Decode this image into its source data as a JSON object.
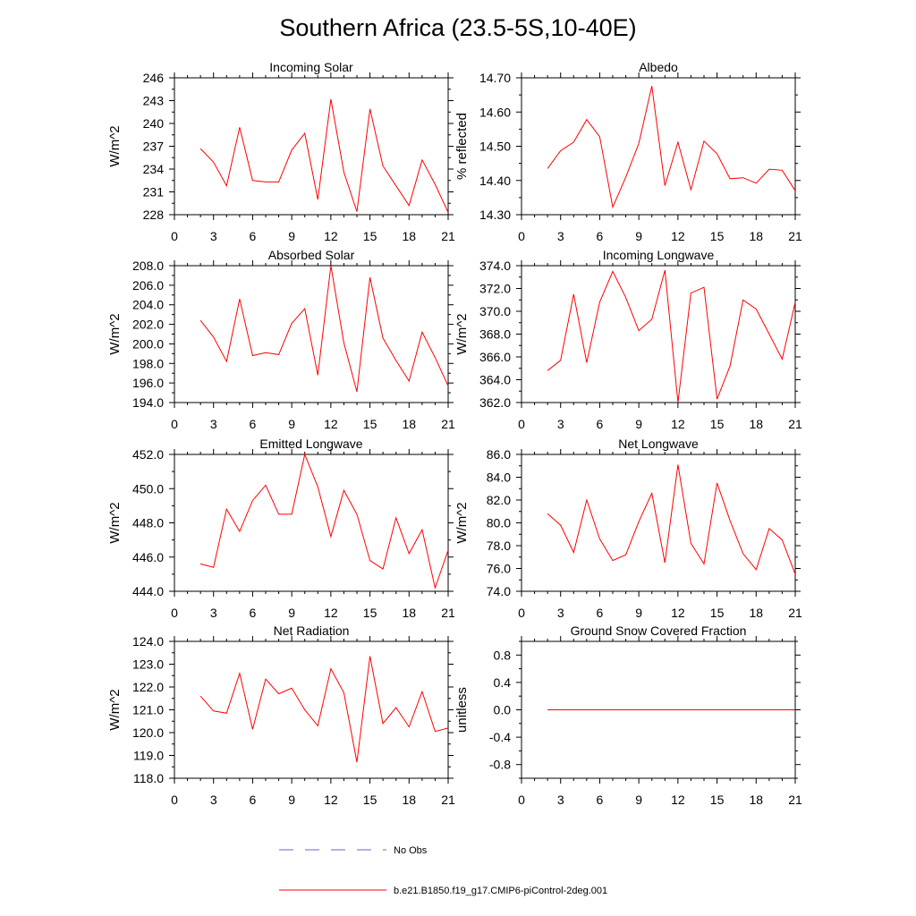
{
  "title": "Southern Africa (23.5-5S,10-40E)",
  "colors": {
    "series": "#ff0000",
    "obs": "#6666cc",
    "axis": "#000000"
  },
  "legend": {
    "obs_label": "No Obs",
    "model_label": "b.e21.B1850.f19_g17.CMIP6-piControl-2deg.001"
  },
  "chart_data": [
    {
      "type": "line",
      "title": "Incoming Solar",
      "ylabel": "W/m^2",
      "xlim": [
        0,
        21
      ],
      "xticks": [
        "0",
        "3",
        "6",
        "9",
        "12",
        "15",
        "18",
        "21"
      ],
      "ylim": [
        228,
        246
      ],
      "yticks": [
        "228",
        "231",
        "234",
        "237",
        "240",
        "243",
        "246"
      ],
      "x": [
        2,
        3,
        4,
        5,
        6,
        7,
        8,
        9,
        10,
        11,
        12,
        13,
        14,
        15,
        16,
        17,
        18,
        19,
        20,
        21
      ],
      "values": [
        236.7,
        234.9,
        231.8,
        239.5,
        232.5,
        232.3,
        232.3,
        236.5,
        238.7,
        230.0,
        243.2,
        233.6,
        228.4,
        241.9,
        234.4,
        231.8,
        229.2,
        235.2,
        232.0,
        228.3
      ]
    },
    {
      "type": "line",
      "title": "Albedo",
      "ylabel": "% reflected",
      "xlim": [
        0,
        21
      ],
      "xticks": [
        "0",
        "3",
        "6",
        "9",
        "12",
        "15",
        "18",
        "21"
      ],
      "ylim": [
        14.3,
        14.7
      ],
      "yticks": [
        "14.30",
        "14.40",
        "14.50",
        "14.60",
        "14.70"
      ],
      "x": [
        2,
        3,
        4,
        5,
        6,
        7,
        8,
        9,
        10,
        11,
        12,
        13,
        14,
        15,
        16,
        17,
        18,
        19,
        20,
        21
      ],
      "values": [
        14.435,
        14.487,
        14.512,
        14.578,
        14.528,
        14.322,
        14.41,
        14.508,
        14.676,
        14.385,
        14.512,
        14.373,
        14.515,
        14.478,
        14.405,
        14.408,
        14.392,
        14.433,
        14.43,
        14.37
      ]
    },
    {
      "type": "line",
      "title": "Absorbed Solar",
      "ylabel": "W/m^2",
      "xlim": [
        0,
        21
      ],
      "xticks": [
        "0",
        "3",
        "6",
        "9",
        "12",
        "15",
        "18",
        "21"
      ],
      "ylim": [
        194,
        208
      ],
      "yticks": [
        "194.0",
        "196.0",
        "198.0",
        "200.0",
        "202.0",
        "204.0",
        "206.0",
        "208.0"
      ],
      "x": [
        2,
        3,
        4,
        5,
        6,
        7,
        8,
        9,
        10,
        11,
        12,
        13,
        14,
        15,
        16,
        17,
        18,
        19,
        20,
        21
      ],
      "values": [
        202.4,
        200.7,
        198.2,
        204.6,
        198.8,
        199.1,
        198.9,
        202.1,
        203.6,
        196.8,
        208.0,
        200.1,
        195.1,
        206.8,
        200.6,
        198.3,
        196.2,
        201.2,
        198.6,
        195.7
      ]
    },
    {
      "type": "line",
      "title": "Incoming Longwave",
      "ylabel": "W/m^2",
      "xlim": [
        0,
        21
      ],
      "xticks": [
        "0",
        "3",
        "6",
        "9",
        "12",
        "15",
        "18",
        "21"
      ],
      "ylim": [
        362,
        374
      ],
      "yticks": [
        "362.0",
        "364.0",
        "366.0",
        "368.0",
        "370.0",
        "372.0",
        "374.0"
      ],
      "x": [
        2,
        3,
        4,
        5,
        6,
        7,
        8,
        9,
        10,
        11,
        12,
        13,
        14,
        15,
        16,
        17,
        18,
        19,
        20,
        21
      ],
      "values": [
        364.8,
        365.7,
        371.5,
        365.5,
        370.8,
        373.5,
        371.2,
        368.3,
        369.3,
        373.6,
        362.0,
        371.6,
        372.1,
        362.3,
        365.2,
        371.0,
        370.2,
        368.0,
        365.8,
        370.8
      ]
    },
    {
      "type": "line",
      "title": "Emitted Longwave",
      "ylabel": "W/m^2",
      "xlim": [
        0,
        21
      ],
      "xticks": [
        "0",
        "3",
        "6",
        "9",
        "12",
        "15",
        "18",
        "21"
      ],
      "ylim": [
        444,
        452
      ],
      "yticks": [
        "444.0",
        "446.0",
        "448.0",
        "450.0",
        "452.0"
      ],
      "x": [
        2,
        3,
        4,
        5,
        6,
        7,
        8,
        9,
        10,
        11,
        12,
        13,
        14,
        15,
        16,
        17,
        18,
        19,
        20,
        21
      ],
      "values": [
        445.6,
        445.4,
        448.8,
        447.5,
        449.3,
        450.2,
        448.5,
        448.5,
        452.0,
        450.1,
        447.2,
        449.9,
        448.5,
        445.8,
        445.3,
        448.3,
        446.2,
        447.6,
        444.2,
        446.4
      ]
    },
    {
      "type": "line",
      "title": "Net Longwave",
      "ylabel": "W/m^2",
      "xlim": [
        0,
        21
      ],
      "xticks": [
        "0",
        "3",
        "6",
        "9",
        "12",
        "15",
        "18",
        "21"
      ],
      "ylim": [
        74,
        86
      ],
      "yticks": [
        "74.0",
        "76.0",
        "78.0",
        "80.0",
        "82.0",
        "84.0",
        "86.0"
      ],
      "x": [
        2,
        3,
        4,
        5,
        6,
        7,
        8,
        9,
        10,
        11,
        12,
        13,
        14,
        15,
        16,
        17,
        18,
        19,
        20,
        21
      ],
      "values": [
        80.8,
        79.8,
        77.4,
        82.0,
        78.6,
        76.7,
        77.2,
        80.1,
        82.6,
        76.5,
        85.1,
        78.2,
        76.4,
        83.5,
        80.2,
        77.3,
        75.9,
        79.5,
        78.5,
        75.5
      ]
    },
    {
      "type": "line",
      "title": "Net Radiation",
      "ylabel": "W/m^2",
      "xlim": [
        0,
        21
      ],
      "xticks": [
        "0",
        "3",
        "6",
        "9",
        "12",
        "15",
        "18",
        "21"
      ],
      "ylim": [
        118,
        124
      ],
      "yticks": [
        "118.0",
        "119.0",
        "120.0",
        "121.0",
        "122.0",
        "123.0",
        "124.0"
      ],
      "x": [
        2,
        3,
        4,
        5,
        6,
        7,
        8,
        9,
        10,
        11,
        12,
        13,
        14,
        15,
        16,
        17,
        18,
        19,
        20,
        21
      ],
      "values": [
        121.6,
        120.95,
        120.85,
        122.6,
        120.15,
        122.35,
        121.7,
        121.95,
        121.0,
        120.3,
        122.8,
        121.75,
        118.7,
        123.35,
        120.4,
        121.1,
        120.25,
        121.8,
        120.05,
        120.2
      ]
    },
    {
      "type": "line",
      "title": "Ground Snow Covered Fraction",
      "ylabel": "unitless",
      "xlim": [
        0,
        21
      ],
      "xticks": [
        "0",
        "3",
        "6",
        "9",
        "12",
        "15",
        "18",
        "21"
      ],
      "ylim": [
        -1.0,
        1.0
      ],
      "yticks": [
        "-0.8",
        "-0.4",
        "0.0",
        "0.4",
        "0.8"
      ],
      "x": [
        2,
        3,
        4,
        5,
        6,
        7,
        8,
        9,
        10,
        11,
        12,
        13,
        14,
        15,
        16,
        17,
        18,
        19,
        20,
        21
      ],
      "values": [
        0,
        0,
        0,
        0,
        0,
        0,
        0,
        0,
        0,
        0,
        0,
        0,
        0,
        0,
        0,
        0,
        0,
        0,
        0,
        0
      ]
    }
  ]
}
